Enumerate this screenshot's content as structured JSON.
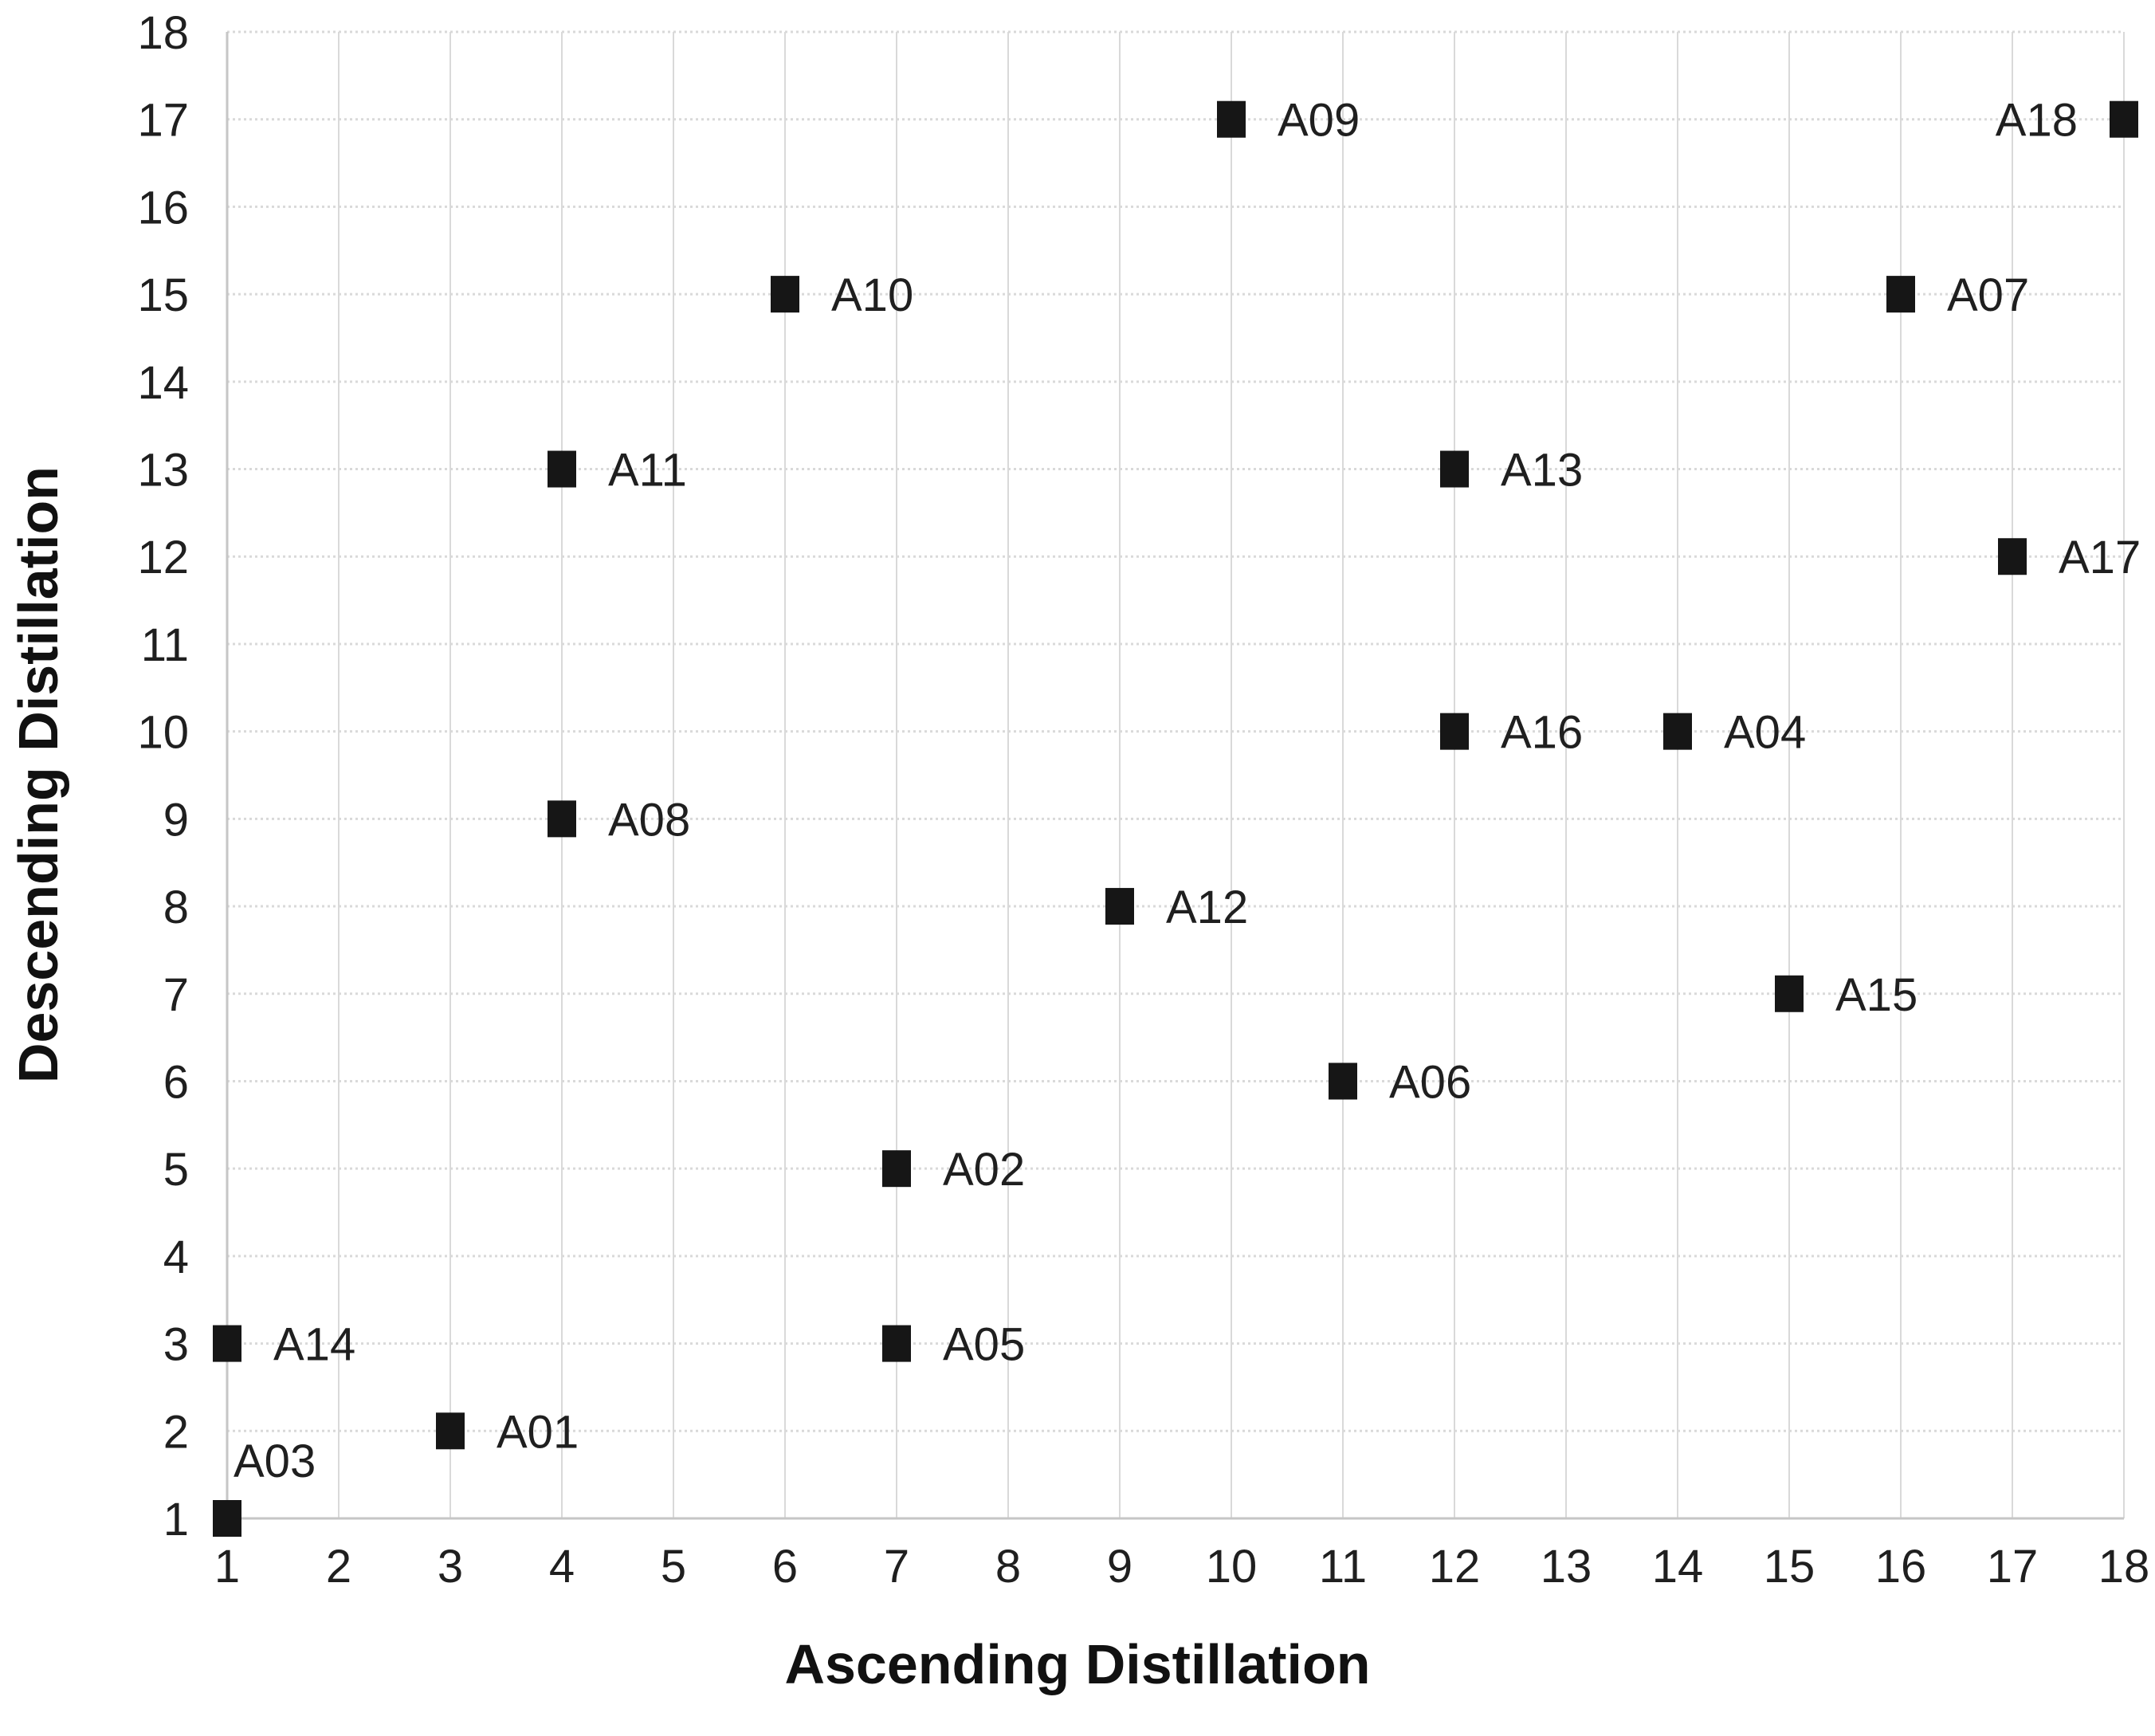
{
  "figure": {
    "background": "#ffffff"
  },
  "chart_data": {
    "type": "scatter",
    "title": "",
    "xlabel": "Ascending Distillation",
    "ylabel": "Descending Distillation",
    "xlim": [
      1,
      18
    ],
    "ylim": [
      1,
      18
    ],
    "xticks": [
      1,
      2,
      3,
      4,
      5,
      6,
      7,
      8,
      9,
      10,
      11,
      12,
      13,
      14,
      15,
      16,
      17,
      18
    ],
    "yticks": [
      1,
      2,
      3,
      4,
      5,
      6,
      7,
      8,
      9,
      10,
      11,
      12,
      13,
      14,
      15,
      16,
      17,
      18
    ],
    "grid": true,
    "legend_position": "none",
    "marker": {
      "shape": "square",
      "color": "#161616",
      "width": 36,
      "height": 46
    },
    "colors": {
      "gridline": "#d9d9d9",
      "axis_line": "#c6c6c6",
      "tick_text": "#1f1f1f",
      "point_label_text": "#1f1f1f"
    },
    "points": [
      {
        "label": "A01",
        "x": 3,
        "y": 2,
        "label_side": "right"
      },
      {
        "label": "A02",
        "x": 7,
        "y": 5,
        "label_side": "right"
      },
      {
        "label": "A03",
        "x": 1,
        "y": 1,
        "label_side": "above"
      },
      {
        "label": "A04",
        "x": 14,
        "y": 10,
        "label_side": "right"
      },
      {
        "label": "A05",
        "x": 7,
        "y": 3,
        "label_side": "right"
      },
      {
        "label": "A06",
        "x": 11,
        "y": 6,
        "label_side": "right"
      },
      {
        "label": "A07",
        "x": 16,
        "y": 15,
        "label_side": "right"
      },
      {
        "label": "A08",
        "x": 4,
        "y": 9,
        "label_side": "right"
      },
      {
        "label": "A09",
        "x": 10,
        "y": 17,
        "label_side": "right"
      },
      {
        "label": "A10",
        "x": 6,
        "y": 15,
        "label_side": "right"
      },
      {
        "label": "A11",
        "x": 4,
        "y": 13,
        "label_side": "right"
      },
      {
        "label": "A12",
        "x": 9,
        "y": 8,
        "label_side": "right"
      },
      {
        "label": "A13",
        "x": 12,
        "y": 13,
        "label_side": "right"
      },
      {
        "label": "A14",
        "x": 1,
        "y": 3,
        "label_side": "right"
      },
      {
        "label": "A15",
        "x": 15,
        "y": 7,
        "label_side": "right"
      },
      {
        "label": "A16",
        "x": 12,
        "y": 10,
        "label_side": "right"
      },
      {
        "label": "A17",
        "x": 17,
        "y": 12,
        "label_side": "right"
      },
      {
        "label": "A18",
        "x": 18,
        "y": 17,
        "label_side": "left"
      }
    ]
  }
}
